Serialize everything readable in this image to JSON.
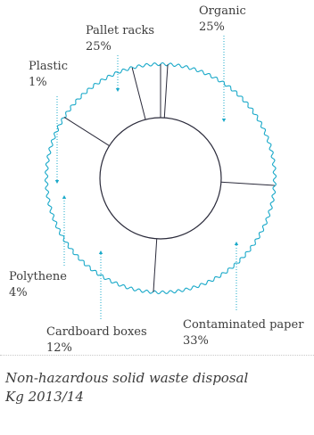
{
  "chart_data": {
    "type": "pie",
    "style": "donut",
    "slices": [
      {
        "label": "Plastic",
        "value": 1
      },
      {
        "label": "Pallet racks",
        "value": 25
      },
      {
        "label": "Organic",
        "value": 25
      },
      {
        "label": "Contaminated paper",
        "value": 33,
        "display": "33%"
      },
      {
        "label": "Cardboard boxes",
        "value": 12
      },
      {
        "label": "Polythene",
        "value": 4
      }
    ],
    "legend": "none",
    "colors": {
      "outer_ring": "#1aa9c9",
      "leader_lines": "#1aa9c9",
      "dividers": "#2a2a3a",
      "text": "#3b3b3b"
    }
  },
  "labels": {
    "organic": {
      "name": "Organic",
      "pct": "25%"
    },
    "pallet": {
      "name": "Pallet racks",
      "pct": "25%"
    },
    "plastic": {
      "name": "Plastic",
      "pct": "1%"
    },
    "polythene": {
      "name": "Polythene",
      "pct": "4%"
    },
    "cardboard": {
      "name": "Cardboard boxes",
      "pct": "12%"
    },
    "contaminated": {
      "name": "Contaminated paper",
      "pct": "33%"
    }
  },
  "caption": {
    "line1": "Non-hazardous solid waste disposal",
    "line2": "Kg 2013/14"
  }
}
